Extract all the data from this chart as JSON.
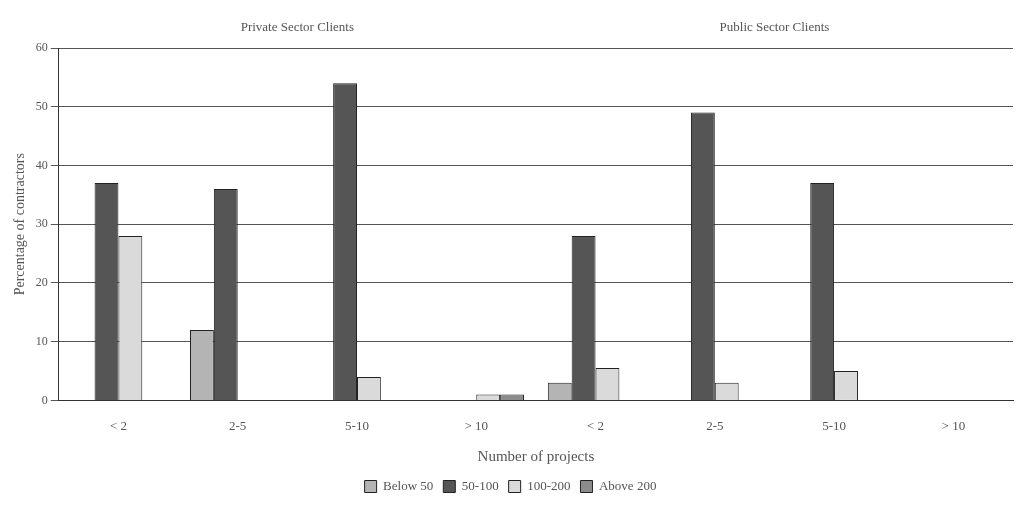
{
  "chart_data": {
    "type": "bar",
    "xlabel": "Number of projects",
    "ylabel": "Percentage of contractors",
    "annotations": [
      "Private Sector Clients",
      "Public Sector Clients"
    ],
    "categories": [
      "< 2",
      "2-5",
      "5-10",
      "> 10",
      "< 2",
      "2-5",
      "5-10",
      "> 10"
    ],
    "series": [
      {
        "name": "Below 50",
        "color": "#b4b4b4",
        "values": [
          0,
          12,
          0,
          0,
          3,
          0,
          0,
          0
        ]
      },
      {
        "name": "50-100",
        "color": "#555555",
        "values": [
          37,
          36,
          54,
          0,
          28,
          49,
          37,
          0
        ]
      },
      {
        "name": "100-200",
        "color": "#dadada",
        "values": [
          28,
          0,
          4,
          1,
          5.5,
          3,
          5,
          0
        ]
      },
      {
        "name": "Above 200",
        "color": "#8c8c8c",
        "values": [
          0,
          0,
          0,
          1,
          0,
          0,
          0,
          0
        ]
      }
    ],
    "ylim": [
      0,
      60
    ],
    "yticks": [
      0,
      10,
      20,
      30,
      40,
      50,
      60
    ],
    "grid": "y",
    "legend": "bottom"
  }
}
